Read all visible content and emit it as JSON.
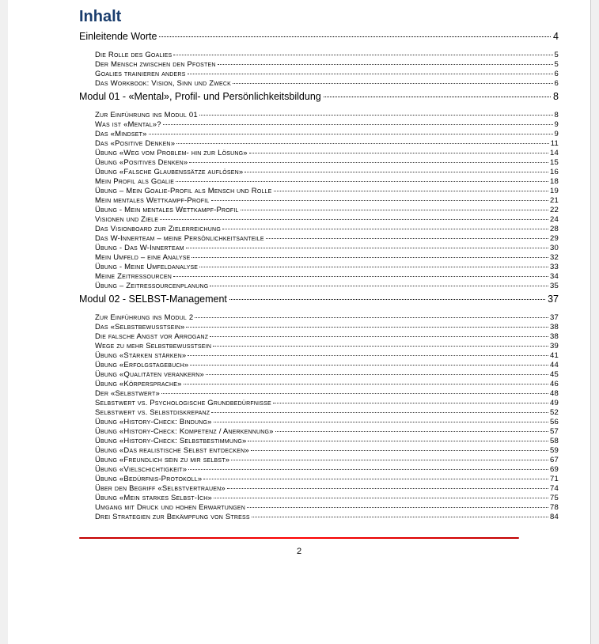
{
  "title": "Inhalt",
  "pageNumber": "2",
  "sections": [
    {
      "label": "Einleitende Worte",
      "page": "4",
      "items": [
        {
          "label": "Die Rolle des Goalies",
          "page": "5"
        },
        {
          "label": "Der Mensch zwischen den Pfosten",
          "page": "5"
        },
        {
          "label": "Goalies trainieren anders",
          "page": "6"
        },
        {
          "label": "Das Workbook: Vision, Sinn und Zweck",
          "page": "6"
        }
      ]
    },
    {
      "label": "Modul 01 - «Mental», Profil- und Persönlichkeitsbildung",
      "page": "8",
      "items": [
        {
          "label": "Zur Einführung ins Modul 01",
          "page": "8"
        },
        {
          "label": "Was ist «Mental»?",
          "page": "9"
        },
        {
          "label": "Das «Mindset»",
          "page": "9"
        },
        {
          "label": "Das «Positive Denken»",
          "page": "11"
        },
        {
          "label": "Übung «Weg vom Problem- hin zur Lösung»",
          "page": "14"
        },
        {
          "label": "Übung «Positives Denken»",
          "page": "15"
        },
        {
          "label": "Übung «Falsche Glaubenssätze auflösen»",
          "page": "16"
        },
        {
          "label": "Mein Profil als Goalie",
          "page": "18"
        },
        {
          "label": "Übung – Mein Goalie-Profil als Mensch und Rolle",
          "page": "19"
        },
        {
          "label": "Mein mentales Wettkampf-Profil",
          "page": "21"
        },
        {
          "label": "Übung - Mein mentales Wettkampf-Profil",
          "page": "22"
        },
        {
          "label": "Visionen und Ziele",
          "page": "24"
        },
        {
          "label": "Das Visionboard zur Zielerreichung",
          "page": "28"
        },
        {
          "label": "Das W-Innerteam – meine Persönlichkeitsanteile",
          "page": "29"
        },
        {
          "label": "Übung - Das W-Innerteam",
          "page": "30"
        },
        {
          "label": "Mein Umfeld – eine Analyse",
          "page": "32"
        },
        {
          "label": "Übung - Meine Umfeldanalyse",
          "page": "33"
        },
        {
          "label": "Meine Zeitressourcen",
          "page": "34"
        },
        {
          "label": "Übung – Zeitressourcenplanung",
          "page": "35"
        }
      ]
    },
    {
      "label": "Modul 02 - SELBST-Management",
      "page": "37",
      "items": [
        {
          "label": "Zur Einführung ins Modul 2",
          "page": "37"
        },
        {
          "label": "Das «Selbstbewusstsein»",
          "page": "38"
        },
        {
          "label": "Die falsche Angst vor Arroganz",
          "page": "38"
        },
        {
          "label": "Wege zu mehr Selbstbewusstsein",
          "page": "39"
        },
        {
          "label": "Übung «Stärken stärken»",
          "page": "41"
        },
        {
          "label": "Übung «Erfolgstagebuch»",
          "page": "44"
        },
        {
          "label": "Übung «Qualitäten verankern»",
          "page": "45"
        },
        {
          "label": "Übung «Körpersprache»",
          "page": "46"
        },
        {
          "label": "Der «Selbstwert»",
          "page": "48"
        },
        {
          "label": "Selbstwert vs. Psychologische Grundbedürfnisse",
          "page": "49"
        },
        {
          "label": "Selbstwert vs. Selbstdiskrepanz",
          "page": "52"
        },
        {
          "label": "Übung «History-Check: Bindung»",
          "page": "56"
        },
        {
          "label": "Übung «History-Check: Kompetenz / Anerkennung»",
          "page": "57"
        },
        {
          "label": "Übung «History-Check: Selbstbestimmung»",
          "page": "58"
        },
        {
          "label": "Übung «Das realistische Selbst entdecken»",
          "page": "59"
        },
        {
          "label": "Übung «Freundlich sein zu mir selbst»",
          "page": "67"
        },
        {
          "label": "Übung «Vielschichtigkeit»",
          "page": "69"
        },
        {
          "label": "Übung «Bedürfnis-Protokoll»",
          "page": "71"
        },
        {
          "label": "Über den Begriff «Selbstvertrauen»",
          "page": "74"
        },
        {
          "label": "Übung «Mein starkes Selbst-Ich»",
          "page": "75"
        },
        {
          "label": "Umgang mit Druck und hohen Erwartungen",
          "page": "78"
        },
        {
          "label": "Drei Strategien zur Bekämpfung von Stress",
          "page": "84"
        }
      ]
    }
  ]
}
